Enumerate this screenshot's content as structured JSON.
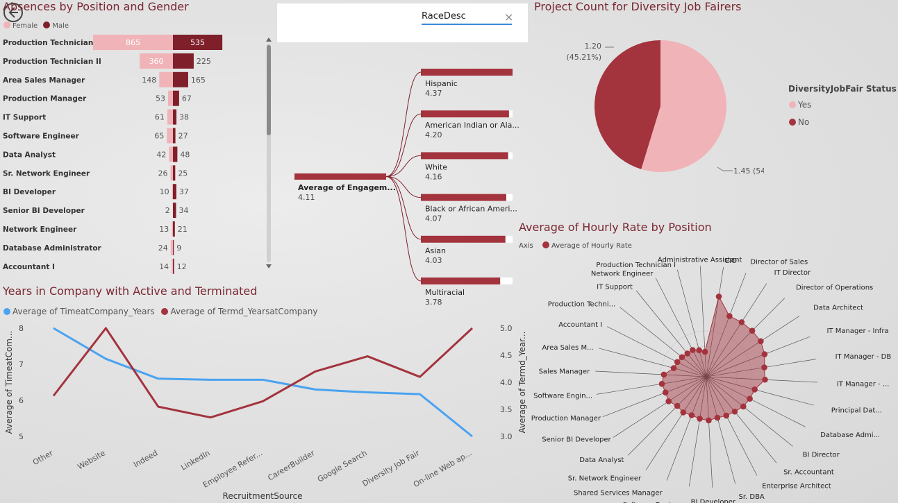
{
  "slicer": {
    "field": "RaceDesc",
    "clear_icon": "×"
  },
  "colors": {
    "female": "#f0b3b8",
    "male": "#7e1f2a",
    "red": "#a3333d",
    "blue": "#4aa3f0",
    "pie_yes": "#f0b3b8",
    "pie_no": "#a3333d",
    "title": "#7a2630"
  },
  "absences": {
    "title": "Absences by Position and Gender",
    "legend": [
      {
        "label": "Female",
        "color": "#f0b3b8"
      },
      {
        "label": "Male",
        "color": "#7e1f2a"
      }
    ]
  },
  "decomp": {
    "root_label": "Average of Engagem...",
    "root_value": "4.11"
  },
  "pie": {
    "title": "Project Count for Diversity Job Fairers",
    "legend_title": "DiversityJobFair Status",
    "legend": [
      {
        "label": "Yes",
        "color": "#f0b3b8"
      },
      {
        "label": "No",
        "color": "#a3333d"
      }
    ],
    "label_no_1": "1.20",
    "label_no_2": "(45.21%)",
    "label_yes": "1.45 (54.79%)"
  },
  "radar": {
    "title": "Average of Hourly Rate by Position",
    "legend_axis": "Axis",
    "legend_series": "Average of Hourly Rate"
  },
  "line": {
    "title": "Years in Company with Active and Terminated",
    "legend": [
      {
        "label": "Average of TimeatCompany_Years",
        "color": "#4aa3f0"
      },
      {
        "label": "Average of Termd_YearsatCompany",
        "color": "#a3333d"
      }
    ],
    "xlabel": "RecruitmentSource",
    "ylabel_left": "Average of TimeatCom...",
    "ylabel_right": "Average of Termd_Year..."
  },
  "chart_data": [
    {
      "type": "bar",
      "title": "Absences by Position and Gender",
      "categories": [
        "Production Technician I",
        "Production Technician II",
        "Area Sales Manager",
        "Production Manager",
        "IT Support",
        "Software Engineer",
        "Data Analyst",
        "Sr. Network Engineer",
        "BI Developer",
        "Senior BI Developer",
        "Network Engineer",
        "Database Administrator",
        "Accountant I"
      ],
      "series": [
        {
          "name": "Female",
          "values": [
            865,
            360,
            148,
            53,
            61,
            65,
            42,
            26,
            10,
            2,
            13,
            24,
            14
          ]
        },
        {
          "name": "Male",
          "values": [
            535,
            225,
            165,
            67,
            38,
            27,
            48,
            25,
            37,
            34,
            21,
            9,
            12
          ]
        }
      ],
      "legend": "top-left"
    },
    {
      "type": "bar",
      "title": "",
      "categories": [
        "Hispanic",
        "American Indian or Ala...",
        "White",
        "Black or African Ameri...",
        "Asian",
        "Multiracial"
      ],
      "values": [
        4.37,
        4.2,
        4.16,
        4.07,
        4.03,
        3.78
      ],
      "value_labels": [
        "4.37",
        "4.20",
        "4.16",
        "4.07",
        "4.03",
        "3.78"
      ]
    },
    {
      "type": "pie",
      "title": "Project Count for Diversity Job Fairers",
      "categories": [
        "Yes",
        "No"
      ],
      "values": [
        1.45,
        1.2
      ],
      "legend": "right"
    },
    {
      "type": "line",
      "title": "Average of Hourly Rate by Position",
      "categories": [
        "CIO",
        "Director of Sales",
        "IT Director",
        "Director of Operations",
        "Data Architect",
        "IT Manager - Infra",
        "IT Manager - DB",
        "IT Manager - ...",
        "Principal Dat...",
        "Database Admi...",
        "BI Director",
        "Sr. Accountant",
        "Enterprise Architect",
        "Sr. DBA",
        "BI Developer",
        "Software Engineer",
        "Shared Services Manager",
        "Sr. Network Engineer",
        "Data Analyst",
        "Senior BI Developer",
        "Production Manager",
        "Software Engin...",
        "Sales Manager",
        "Area Sales M...",
        "Accountant I",
        "Production Techni...",
        "IT Support",
        "Network Engineer",
        "Production Technician I",
        "Administrative Assistant"
      ],
      "series": [
        {
          "name": "Average of Hourly Rate",
          "values": [
            65,
            52,
            52,
            52,
            52,
            50,
            47,
            47,
            40,
            39,
            38,
            36,
            35,
            34,
            35,
            34,
            33,
            34,
            33,
            36,
            35,
            36,
            34,
            27,
            26,
            25,
            24,
            24,
            22,
            20
          ]
        }
      ],
      "legend": "top-left"
    },
    {
      "type": "line",
      "title": "Years in Company with Active and Terminated",
      "categories": [
        "Other",
        "Website",
        "Indeed",
        "LinkedIn",
        "Employee Refer...",
        "CareerBuilder",
        "Google Search",
        "Diversity Job Fair",
        "On-line Web ap..."
      ],
      "series": [
        {
          "name": "Average of TimeatCompany_Years",
          "axis": "left",
          "values": [
            8.0,
            7.15,
            6.6,
            6.57,
            6.57,
            6.3,
            6.22,
            6.17,
            5.0
          ]
        },
        {
          "name": "Average of Termd_YearsatCompany",
          "axis": "right",
          "values": [
            3.75,
            5.0,
            3.55,
            3.35,
            3.65,
            4.2,
            4.48,
            4.1,
            5.0
          ]
        }
      ],
      "y_left": {
        "ticks": [
          "8",
          "7",
          "6",
          "5"
        ],
        "range": [
          5,
          8
        ]
      },
      "y_right": {
        "ticks": [
          "5.0",
          "4.5",
          "4.0",
          "3.5",
          "3.0"
        ],
        "range": [
          3,
          5
        ]
      },
      "xlabel": "RecruitmentSource",
      "legend": "top-left"
    }
  ]
}
